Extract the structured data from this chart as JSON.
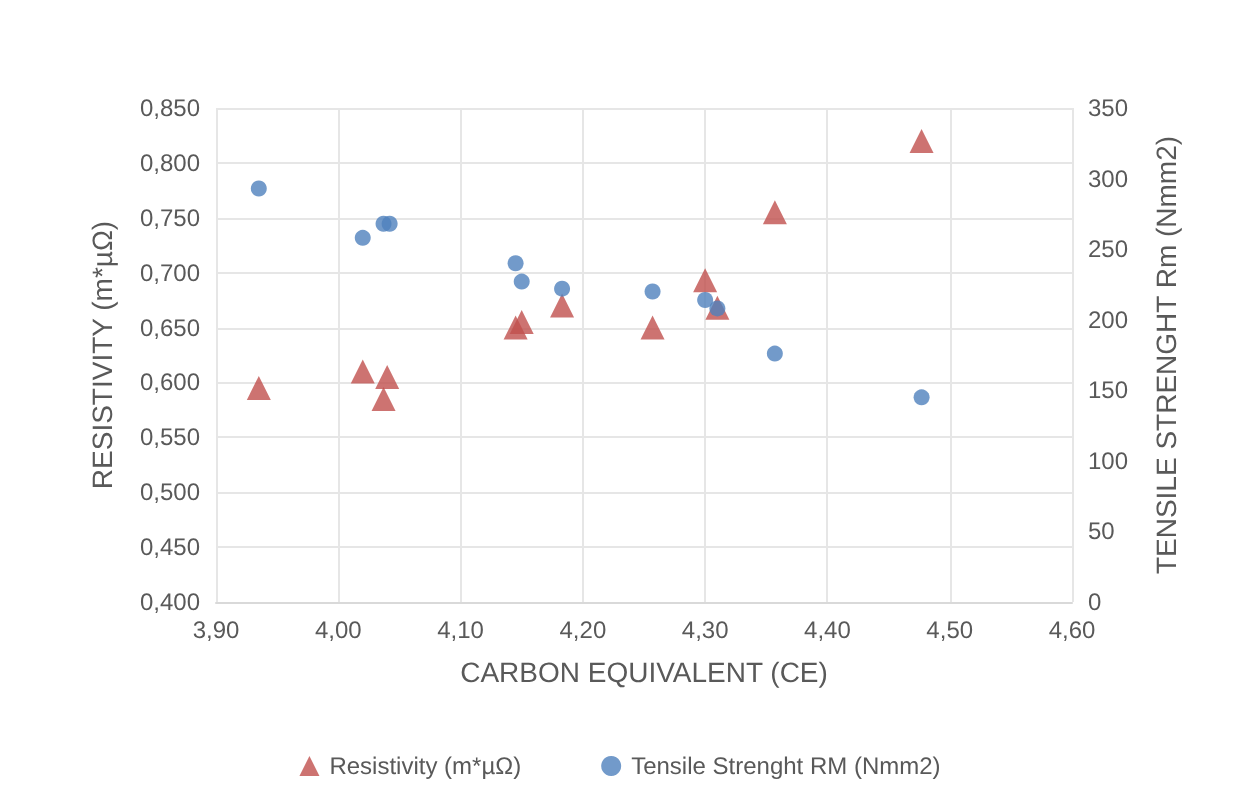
{
  "chart_data": {
    "type": "scatter",
    "xlabel": "CARBON EQUIVALENT (CE)",
    "ylabel": "RESISTIVITY (m*µΩ)",
    "y2label": "TENSILE STRENGHT Rm (Nmm2)",
    "xlim": [
      3.9,
      4.6
    ],
    "xticks": [
      {
        "value": 3.9,
        "label": "3,90"
      },
      {
        "value": 4.0,
        "label": "4,00"
      },
      {
        "value": 4.1,
        "label": "4,10"
      },
      {
        "value": 4.2,
        "label": "4,20"
      },
      {
        "value": 4.3,
        "label": "4,30"
      },
      {
        "value": 4.4,
        "label": "4,40"
      },
      {
        "value": 4.5,
        "label": "4,50"
      },
      {
        "value": 4.6,
        "label": "4,60"
      }
    ],
    "ylim": [
      0.4,
      0.85
    ],
    "yticks": [
      {
        "value": 0.4,
        "label": "0,400"
      },
      {
        "value": 0.45,
        "label": "0,450"
      },
      {
        "value": 0.5,
        "label": "0,500"
      },
      {
        "value": 0.55,
        "label": "0,550"
      },
      {
        "value": 0.6,
        "label": "0,600"
      },
      {
        "value": 0.65,
        "label": "0,650"
      },
      {
        "value": 0.7,
        "label": "0,700"
      },
      {
        "value": 0.75,
        "label": "0,750"
      },
      {
        "value": 0.8,
        "label": "0,800"
      },
      {
        "value": 0.85,
        "label": "0,850"
      }
    ],
    "y2lim": [
      0,
      350
    ],
    "y2ticks": [
      0,
      50,
      100,
      150,
      200,
      250,
      300,
      350
    ],
    "grid": true,
    "legend": "bottom",
    "series": [
      {
        "name": "Resistivity (m*µΩ)",
        "color": "#c0504d",
        "marker": "triangle",
        "x": [
          3.935,
          4.02,
          4.04,
          4.037,
          4.145,
          4.15,
          4.183,
          4.257,
          4.3,
          4.31,
          4.357,
          4.477
        ],
        "values": [
          0.595,
          0.61,
          0.605,
          0.585,
          0.65,
          0.655,
          0.67,
          0.65,
          0.693,
          0.668,
          0.755,
          0.82
        ]
      },
      {
        "name": "Tensile Strenght RM (Nmm2)",
        "color": "#4f81bd",
        "marker": "circle",
        "axis": "y2",
        "x": [
          3.935,
          4.02,
          4.037,
          4.042,
          4.145,
          4.15,
          4.183,
          4.257,
          4.3,
          4.31,
          4.357,
          4.477
        ],
        "values": [
          293,
          258,
          268,
          268,
          240,
          227,
          222,
          220,
          214,
          208,
          176,
          145
        ]
      }
    ]
  }
}
